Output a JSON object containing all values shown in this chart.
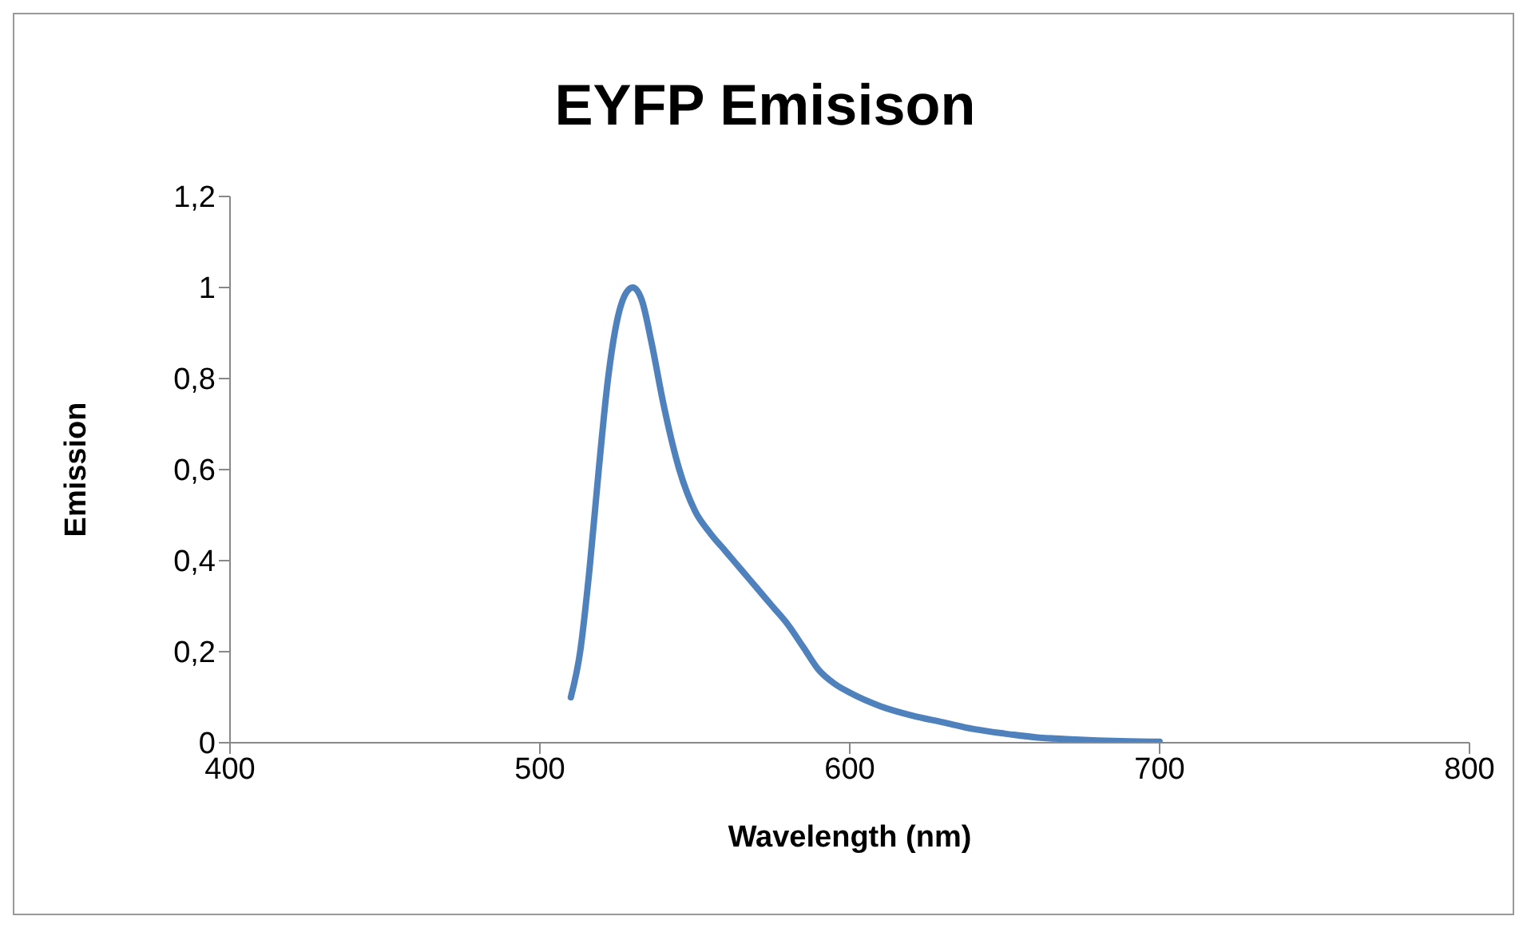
{
  "chart_data": {
    "type": "line",
    "title": "EYFP Emisison",
    "xlabel": "Wavelength (nm)",
    "ylabel": "Emission",
    "x": [
      510,
      513,
      516,
      519,
      522,
      525,
      528,
      530,
      533,
      536,
      540,
      545,
      550,
      555,
      560,
      565,
      570,
      575,
      580,
      585,
      590,
      595,
      600,
      610,
      620,
      630,
      640,
      650,
      660,
      670,
      680,
      690,
      700
    ],
    "series": [
      {
        "color": "#4f81bd",
        "values": [
          0.1,
          0.2,
          0.38,
          0.6,
          0.8,
          0.93,
          0.99,
          1.0,
          0.97,
          0.88,
          0.74,
          0.6,
          0.51,
          0.46,
          0.42,
          0.38,
          0.34,
          0.3,
          0.26,
          0.21,
          0.16,
          0.13,
          0.11,
          0.08,
          0.06,
          0.045,
          0.03,
          0.02,
          0.012,
          0.008,
          0.005,
          0.003,
          0.002
        ]
      }
    ],
    "xlim": [
      400,
      800
    ],
    "xticks": [
      400,
      500,
      600,
      700,
      800
    ],
    "ylim": [
      0,
      1.2
    ],
    "yticks": [
      0,
      {
        "value": 0.2,
        "label": "0,2"
      },
      {
        "value": 0.4,
        "label": "0,4"
      },
      {
        "value": 0.6,
        "label": "0,6"
      },
      {
        "value": 0.8,
        "label": "0,8"
      },
      1,
      {
        "value": 1.2,
        "label": "1,2"
      }
    ],
    "grid": false,
    "legend": false,
    "marker": "none",
    "line_style": "solid"
  }
}
